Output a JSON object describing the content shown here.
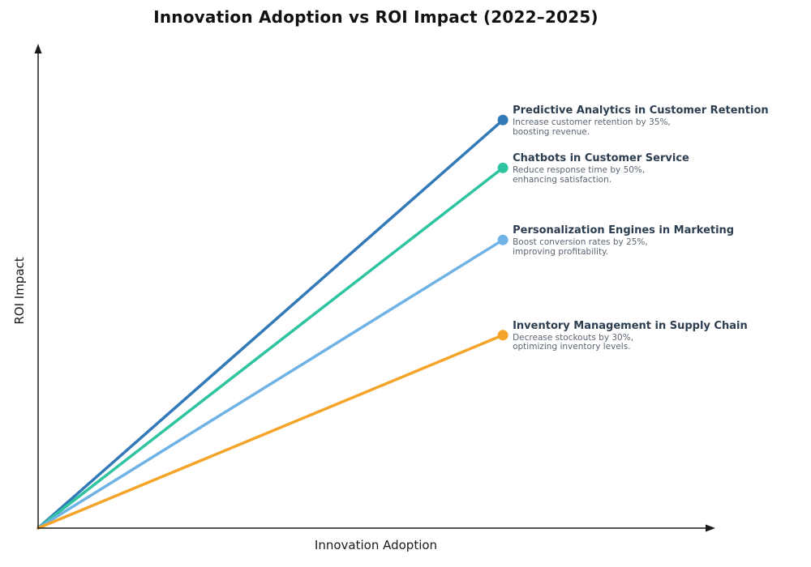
{
  "page": {
    "background": "#ffffff"
  },
  "chart_data": {
    "type": "line",
    "title": "Innovation Adoption vs ROI Impact (2022–2025)",
    "xlabel": "Innovation Adoption",
    "ylabel": "ROI Impact",
    "grid": false,
    "tick_labels": "none",
    "legend_position": "inline-annotations-right-of-endpoints",
    "axis_color": "#1a1a1a",
    "axis_arrows": true,
    "x_range": [
      0,
      1
    ],
    "y_range": [
      0,
      1
    ],
    "label_title_color": "#2c3e50",
    "label_desc_color": "#5a6572",
    "series": [
      {
        "name": "Predictive Analytics in Customer Retention",
        "annotation": [
          "Increase customer retention by 35%,",
          "boosting revenue."
        ],
        "color": "#3279b7",
        "x": [
          0,
          0.688
        ],
        "y": [
          0,
          0.844
        ]
      },
      {
        "name": "Chatbots in Customer Service",
        "annotation": [
          "Reduce response time by 50%,",
          "enhancing satisfaction."
        ],
        "color": "#2ec4a0",
        "x": [
          0,
          0.688
        ],
        "y": [
          0,
          0.745
        ]
      },
      {
        "name": "Personalization Engines in Marketing",
        "annotation": [
          "Boost conversion rates by 25%,",
          "improving profitability."
        ],
        "color": "#6fb2e6",
        "x": [
          0,
          0.688
        ],
        "y": [
          0,
          0.596
        ]
      },
      {
        "name": "Inventory Management in Supply Chain",
        "annotation": [
          "Decrease stockouts by 30%,",
          "optimizing inventory levels."
        ],
        "color": "#f5a42a",
        "x": [
          0,
          0.688
        ],
        "y": [
          0,
          0.399
        ]
      }
    ]
  }
}
